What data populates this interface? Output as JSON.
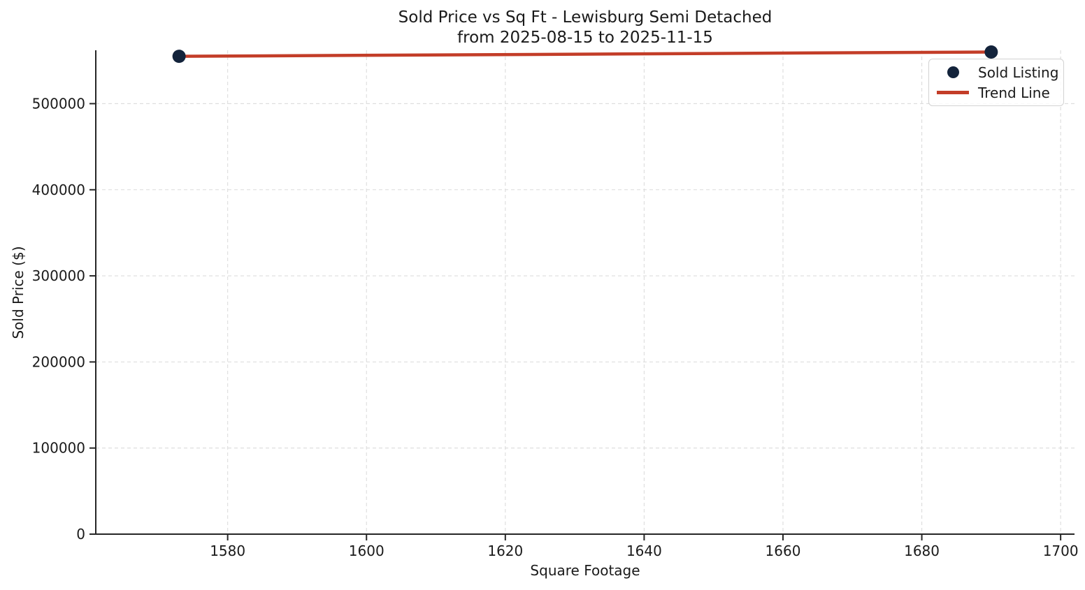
{
  "chart_data": {
    "type": "scatter",
    "title": "Sold Price vs Sq Ft - Lewisburg Semi Detached",
    "subtitle": "from 2025-08-15 to 2025-11-15",
    "xlabel": "Square Footage",
    "ylabel": "Sold Price ($)",
    "xlim": [
      1561,
      1702
    ],
    "ylim": [
      0,
      562000
    ],
    "x_ticks": [
      1580,
      1600,
      1620,
      1640,
      1660,
      1680,
      1700
    ],
    "y_ticks": [
      0,
      100000,
      200000,
      300000,
      400000,
      500000
    ],
    "grid": {
      "show": true,
      "style": "dashed",
      "color": "#dcdcdc"
    },
    "axis": {
      "spine_color": "#262626",
      "tick_color": "#262626",
      "tick_label_color": "#1a1a1a",
      "spines_shown": [
        "left",
        "bottom"
      ]
    },
    "legend": {
      "position": "upper right",
      "items": [
        {
          "label": "Sold Listing",
          "marker": "dot",
          "color": "#13233b"
        },
        {
          "label": "Trend Line",
          "marker": "line",
          "color": "#c33d28"
        }
      ]
    },
    "series": [
      {
        "name": "Sold Listing",
        "type": "scatter",
        "color": "#13233b",
        "marker_radius": 9.5,
        "points": [
          {
            "x": 1573,
            "y": 555000
          },
          {
            "x": 1690,
            "y": 560000
          }
        ]
      },
      {
        "name": "Trend Line",
        "type": "line",
        "color": "#c33d28",
        "line_width": 4.5,
        "points": [
          {
            "x": 1573,
            "y": 555000
          },
          {
            "x": 1690,
            "y": 560000
          }
        ]
      }
    ]
  }
}
